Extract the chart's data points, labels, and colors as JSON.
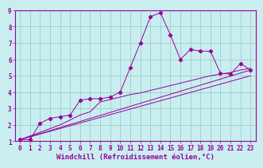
{
  "background_color": "#c8eef0",
  "grid_color": "#a0cccc",
  "line_color": "#990099",
  "xlabel": "Windchill (Refroidissement éolien,°C)",
  "xlim": [
    -0.5,
    23.5
  ],
  "ylim": [
    1,
    9
  ],
  "xticks": [
    0,
    1,
    2,
    3,
    4,
    5,
    6,
    7,
    8,
    9,
    10,
    11,
    12,
    13,
    14,
    15,
    16,
    17,
    18,
    19,
    20,
    21,
    22,
    23
  ],
  "yticks": [
    1,
    2,
    3,
    4,
    5,
    6,
    7,
    8,
    9
  ],
  "line1_x": [
    0,
    1,
    2,
    3,
    4,
    5,
    6,
    7,
    8,
    9,
    10,
    11,
    12,
    13,
    14,
    15,
    16,
    17,
    18,
    19,
    20,
    21,
    22,
    23
  ],
  "line1_y": [
    1.1,
    1.1,
    2.1,
    2.4,
    2.5,
    2.6,
    3.5,
    3.6,
    3.6,
    3.7,
    4.0,
    5.5,
    7.0,
    8.6,
    8.85,
    7.5,
    6.0,
    6.6,
    6.5,
    6.5,
    5.15,
    5.1,
    5.75,
    5.35
  ],
  "line2_x": [
    0,
    4,
    6,
    7,
    8,
    9,
    10,
    11,
    12,
    13,
    14,
    15,
    16,
    17,
    18,
    19,
    20,
    21,
    22,
    23
  ],
  "line2_y": [
    1.1,
    2.0,
    2.6,
    2.8,
    3.4,
    3.55,
    3.7,
    3.85,
    3.95,
    4.1,
    4.25,
    4.4,
    4.55,
    4.7,
    4.85,
    5.0,
    5.1,
    5.2,
    5.35,
    5.45
  ],
  "line3_x": [
    0,
    23
  ],
  "line3_y": [
    1.1,
    5.35
  ],
  "line4_x": [
    0,
    23
  ],
  "line4_y": [
    1.1,
    5.0
  ],
  "tick_fontsize": 5.5,
  "xlabel_fontsize": 6.5
}
